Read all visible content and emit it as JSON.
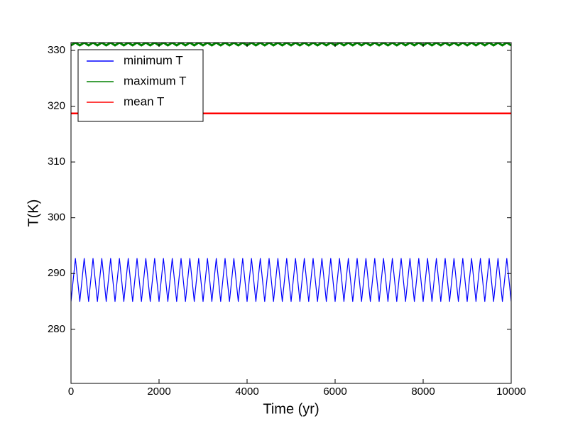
{
  "chart_data": {
    "type": "line",
    "xlabel": "Time (yr)",
    "ylabel": "T(K)",
    "xlim": [
      0,
      10000
    ],
    "ylim": [
      270.3,
      331.4
    ],
    "xticks": [
      0,
      2000,
      4000,
      6000,
      8000,
      10000
    ],
    "yticks": [
      280,
      290,
      300,
      310,
      320,
      330
    ],
    "legend": "upper left",
    "grid": false,
    "x": [
      0,
      100,
      200,
      300,
      400,
      500,
      600,
      700,
      800,
      900,
      1000,
      1100,
      1200,
      1300,
      1400,
      1500,
      1600,
      1700,
      1800,
      1900,
      2000,
      2100,
      2200,
      2300,
      2400,
      2500,
      2600,
      2700,
      2800,
      2900,
      3000,
      3100,
      3200,
      3300,
      3400,
      3500,
      3600,
      3700,
      3800,
      3900,
      4000,
      4100,
      4200,
      4300,
      4400,
      4500,
      4600,
      4700,
      4800,
      4900,
      5000,
      5100,
      5200,
      5300,
      5400,
      5500,
      5600,
      5700,
      5800,
      5900,
      6000,
      6100,
      6200,
      6300,
      6400,
      6500,
      6600,
      6700,
      6800,
      6900,
      7000,
      7100,
      7200,
      7300,
      7400,
      7500,
      7600,
      7700,
      7800,
      7900,
      8000,
      8100,
      8200,
      8300,
      8400,
      8500,
      8600,
      8700,
      8800,
      8900,
      9000,
      9100,
      9200,
      9300,
      9400,
      9500,
      9600,
      9700,
      9800,
      9900,
      10000
    ],
    "series": [
      {
        "name": "minimum T",
        "color": "#0000ff",
        "width": 1.2,
        "values": [
          285,
          292.7,
          285,
          292.7,
          285,
          292.7,
          285,
          292.7,
          285,
          292.7,
          285,
          292.7,
          285,
          292.7,
          285,
          292.7,
          285,
          292.7,
          285,
          292.7,
          285,
          292.7,
          285,
          292.7,
          285,
          292.7,
          285,
          292.7,
          285,
          292.7,
          285,
          292.7,
          285,
          292.7,
          285,
          292.7,
          285,
          292.7,
          285,
          292.7,
          285,
          292.7,
          285,
          292.7,
          285,
          292.7,
          285,
          292.7,
          285,
          292.7,
          285,
          292.7,
          285,
          292.7,
          285,
          292.7,
          285,
          292.7,
          285,
          292.7,
          285,
          292.7,
          285,
          292.7,
          285,
          292.7,
          285,
          292.7,
          285,
          292.7,
          285,
          292.7,
          285,
          292.7,
          285,
          292.7,
          285,
          292.7,
          285,
          292.7,
          285,
          292.7,
          285,
          292.7,
          285,
          292.7,
          285,
          292.7,
          285,
          292.7,
          285,
          292.7,
          285,
          292.7,
          285,
          292.7,
          285,
          292.7,
          285,
          292.7,
          285
        ]
      },
      {
        "name": "maximum T",
        "color": "#008000",
        "width": 3,
        "values": [
          330.9,
          331.4,
          330.9,
          331.4,
          330.9,
          331.4,
          330.9,
          331.4,
          330.9,
          331.4,
          330.9,
          331.4,
          330.9,
          331.4,
          330.9,
          331.4,
          330.9,
          331.4,
          330.9,
          331.4,
          330.9,
          331.4,
          330.9,
          331.4,
          330.9,
          331.4,
          330.9,
          331.4,
          330.9,
          331.4,
          330.9,
          331.4,
          330.9,
          331.4,
          330.9,
          331.4,
          330.9,
          331.4,
          330.9,
          331.4,
          330.9,
          331.4,
          330.9,
          331.4,
          330.9,
          331.4,
          330.9,
          331.4,
          330.9,
          331.4,
          330.9,
          331.4,
          330.9,
          331.4,
          330.9,
          331.4,
          330.9,
          331.4,
          330.9,
          331.4,
          330.9,
          331.4,
          330.9,
          331.4,
          330.9,
          331.4,
          330.9,
          331.4,
          330.9,
          331.4,
          330.9,
          331.4,
          330.9,
          331.4,
          330.9,
          331.4,
          330.9,
          331.4,
          330.9,
          331.4,
          330.9,
          331.4,
          330.9,
          331.4,
          330.9,
          331.4,
          330.9,
          331.4,
          330.9,
          331.4,
          330.9,
          331.4,
          330.9,
          331.4,
          330.9,
          331.4,
          330.9,
          331.4,
          330.9,
          331.4,
          330.9
        ]
      },
      {
        "name": "mean T",
        "color": "#ff0000",
        "width": 2.5,
        "values": [
          318.7,
          318.7,
          318.7,
          318.7,
          318.7,
          318.7,
          318.7,
          318.7,
          318.7,
          318.7,
          318.7,
          318.7,
          318.7,
          318.7,
          318.7,
          318.7,
          318.7,
          318.7,
          318.7,
          318.7,
          318.7,
          318.7,
          318.7,
          318.7,
          318.7,
          318.7,
          318.7,
          318.7,
          318.7,
          318.7,
          318.7,
          318.7,
          318.7,
          318.7,
          318.7,
          318.7,
          318.7,
          318.7,
          318.7,
          318.7,
          318.7,
          318.7,
          318.7,
          318.7,
          318.7,
          318.7,
          318.7,
          318.7,
          318.7,
          318.7,
          318.7,
          318.7,
          318.7,
          318.7,
          318.7,
          318.7,
          318.7,
          318.7,
          318.7,
          318.7,
          318.7,
          318.7,
          318.7,
          318.7,
          318.7,
          318.7,
          318.7,
          318.7,
          318.7,
          318.7,
          318.7,
          318.7,
          318.7,
          318.7,
          318.7,
          318.7,
          318.7,
          318.7,
          318.7,
          318.7,
          318.7,
          318.7,
          318.7,
          318.7,
          318.7,
          318.7,
          318.7,
          318.7,
          318.7,
          318.7,
          318.7,
          318.7,
          318.7,
          318.7,
          318.7,
          318.7,
          318.7,
          318.7,
          318.7,
          318.7,
          318.7
        ]
      }
    ]
  }
}
